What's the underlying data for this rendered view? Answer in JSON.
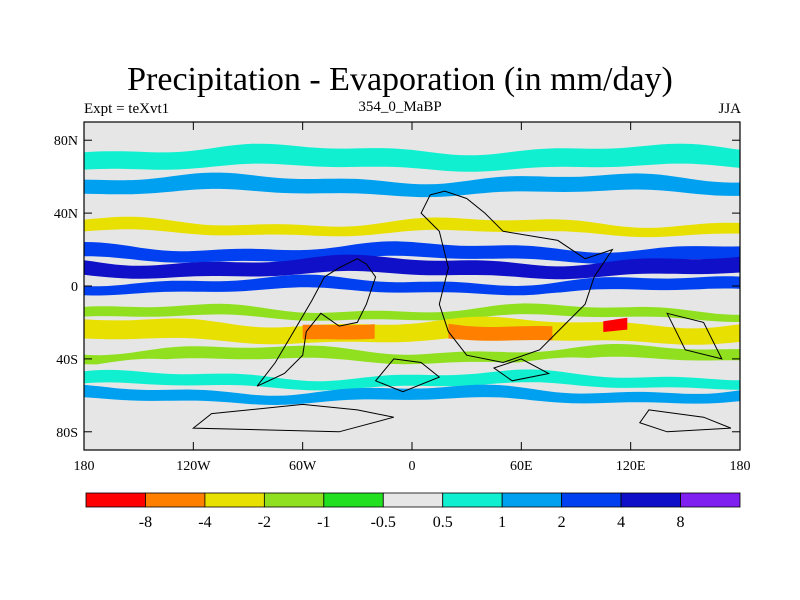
{
  "chart_data": {
    "type": "heatmap",
    "title": "Precipitation - Evaporation (in mm/day)",
    "left_string": "Expt = teXvt1",
    "center_string": "354_0_MaBP",
    "right_string": "JJA",
    "x_ticks": [
      "180",
      "120W",
      "60W",
      "0",
      "60E",
      "120E",
      "180"
    ],
    "y_ticks": [
      "80N",
      "40N",
      "0",
      "40S",
      "80S"
    ],
    "xlim": [
      -180,
      180
    ],
    "ylim": [
      -90,
      90
    ],
    "colorbar": {
      "colors": [
        "#ff0000",
        "#ff8000",
        "#e8e000",
        "#90e020",
        "#20e020",
        "#e6e6e6",
        "#10f0d0",
        "#00a0f0",
        "#0040f0",
        "#1010c8",
        "#8020f0"
      ],
      "labels": [
        "-8",
        "-4",
        "-2",
        "-1",
        "-0.5",
        "0.5",
        "1",
        "2",
        "4",
        "8"
      ]
    },
    "bands": [
      {
        "level": "1",
        "color": "#10f0d0",
        "y": 70,
        "x": [
          -180,
          180
        ],
        "thick": 10
      },
      {
        "level": "2",
        "color": "#00a0f0",
        "y": 55,
        "x": [
          -180,
          180
        ],
        "thick": 8
      },
      {
        "level": "0.5",
        "color": "#e6e6e6",
        "y": 42,
        "x": [
          -180,
          180
        ],
        "thick": 6
      },
      {
        "level": "-2",
        "color": "#e8e000",
        "y": 32,
        "x": [
          -180,
          180
        ],
        "thick": 6
      },
      {
        "level": "4",
        "color": "#0040f0",
        "y": 18,
        "x": [
          -180,
          180
        ],
        "thick": 7
      },
      {
        "level": "8",
        "color": "#1010c8",
        "y": 10,
        "x": [
          -180,
          180
        ],
        "thick": 8
      },
      {
        "level": "4",
        "color": "#0040f0",
        "y": 0,
        "x": [
          -180,
          180
        ],
        "thick": 6
      },
      {
        "level": "0.5",
        "color": "#e6e6e6",
        "y": -8,
        "x": [
          -180,
          180
        ],
        "thick": 4
      },
      {
        "level": "-1",
        "color": "#90e020",
        "y": -15,
        "x": [
          -180,
          180
        ],
        "thick": 5
      },
      {
        "level": "-2",
        "color": "#e8e000",
        "y": -25,
        "x": [
          -180,
          180
        ],
        "thick": 10
      },
      {
        "level": "-4",
        "color": "#ff8000",
        "y": -25,
        "x": [
          -60,
          -20
        ],
        "thick": 8
      },
      {
        "level": "-4",
        "color": "#ff8000",
        "y": -25,
        "x": [
          20,
          80
        ],
        "thick": 8
      },
      {
        "level": "-8",
        "color": "#ff0000",
        "y": -22,
        "x": [
          105,
          120
        ],
        "thick": 6
      },
      {
        "level": "-1",
        "color": "#90e020",
        "y": -38,
        "x": [
          -180,
          180
        ],
        "thick": 6
      },
      {
        "level": "0.5",
        "color": "#e6e6e6",
        "y": -45,
        "x": [
          -180,
          180
        ],
        "thick": 5
      },
      {
        "level": "1",
        "color": "#10f0d0",
        "y": -52,
        "x": [
          -180,
          180
        ],
        "thick": 6
      },
      {
        "level": "2",
        "color": "#00a0f0",
        "y": -60,
        "x": [
          -180,
          180
        ],
        "thick": 6
      }
    ]
  }
}
